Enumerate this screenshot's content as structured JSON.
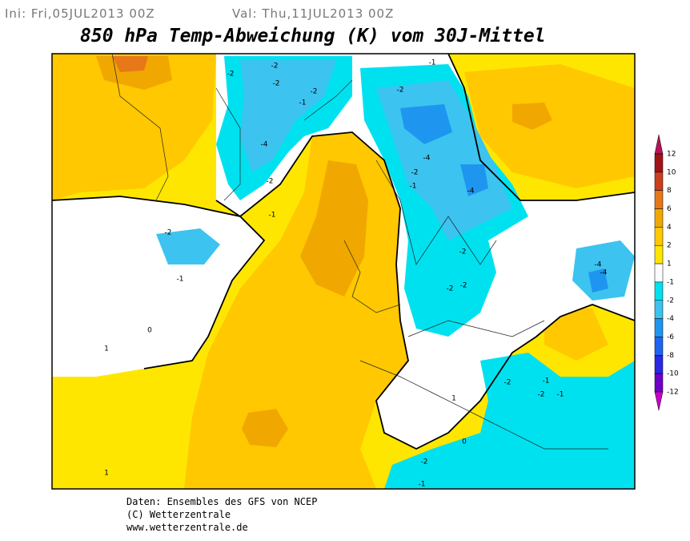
{
  "header": {
    "init": "Ini: Fri,05JUL2013 00Z",
    "valid": "Val: Thu,11JUL2013 00Z",
    "title": "850 hPa Temp-Abweichung (K) vom 30J-Mittel"
  },
  "colorbar": {
    "levels": [
      12,
      10,
      8,
      6,
      4,
      2,
      1,
      -1,
      -2,
      -4,
      -6,
      -8,
      -10,
      -12
    ],
    "colors": [
      "#b4145a",
      "#a01418",
      "#c8401e",
      "#e67818",
      "#f0a800",
      "#ffc800",
      "#ffe600",
      "#ffffff",
      "#00e1f0",
      "#3cc3f0",
      "#1e96f0",
      "#1e64f0",
      "#2828e6",
      "#6e00c8",
      "#c800c8"
    ]
  },
  "contour_labels": [
    "-2",
    "-2",
    "-2",
    "-2",
    "-1",
    "-4",
    "-2",
    "-1",
    "-2",
    "-1",
    "0",
    "1",
    "1",
    "-2",
    "-1",
    "-4",
    "-2",
    "-1",
    "-4",
    "-2",
    "-2",
    "-2",
    "-4",
    "-4",
    "-2",
    "-2",
    "-1",
    "-1",
    "-2",
    "-1",
    "0",
    "1"
  ],
  "footer": [
    "Daten: Ensembles des GFS von NCEP",
    "(C) Wetterzentrale",
    "www.wetterzentrale.de"
  ]
}
